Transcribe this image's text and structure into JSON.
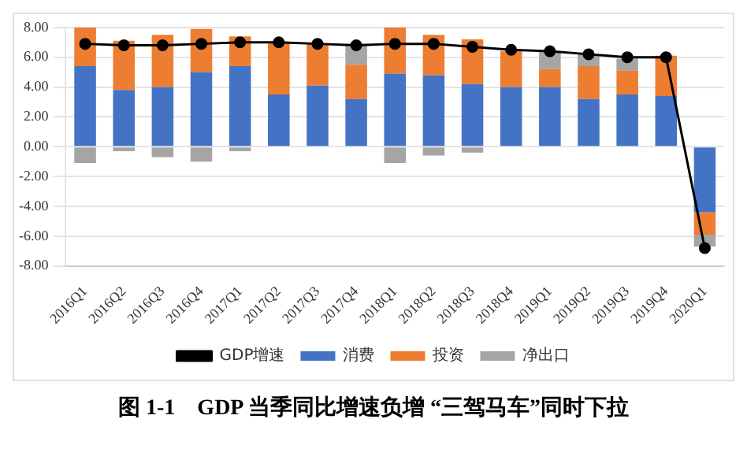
{
  "chart_data": {
    "type": "bar",
    "title": "图 1-1　GDP 当季同比增速负增 “三驾马车”同时下拉",
    "categories": [
      "2016Q1",
      "2016Q2",
      "2016Q3",
      "2016Q4",
      "2017Q1",
      "2017Q2",
      "2017Q3",
      "2017Q4",
      "2018Q1",
      "2018Q2",
      "2018Q3",
      "2018Q4",
      "2019Q1",
      "2019Q2",
      "2019Q3",
      "2019Q4",
      "2020Q1"
    ],
    "stacked": true,
    "series": [
      {
        "name": "消费",
        "color": "#4472c4",
        "values": [
          5.4,
          3.8,
          4.0,
          5.0,
          5.4,
          3.5,
          4.1,
          3.2,
          4.9,
          4.8,
          4.2,
          4.0,
          4.0,
          3.2,
          3.5,
          3.4,
          -4.4
        ]
      },
      {
        "name": "投资",
        "color": "#ed7d31",
        "values": [
          2.6,
          3.3,
          3.5,
          2.9,
          2.0,
          3.5,
          2.8,
          2.3,
          3.1,
          2.7,
          3.0,
          2.4,
          1.2,
          2.2,
          1.6,
          2.7,
          -1.5
        ]
      },
      {
        "name": "净出口",
        "color": "#a5a5a5",
        "values": [
          -1.1,
          -0.3,
          -0.7,
          -1.0,
          -0.3,
          null,
          null,
          1.4,
          -1.1,
          -0.6,
          -0.4,
          null,
          1.2,
          0.8,
          0.8,
          null,
          -0.8
        ]
      },
      {
        "name": "GDP增速",
        "type": "line",
        "color": "#000000",
        "marker": "circle",
        "values": [
          6.9,
          6.8,
          6.8,
          6.9,
          7.0,
          7.0,
          6.9,
          6.8,
          6.9,
          6.9,
          6.7,
          6.5,
          6.4,
          6.2,
          6.0,
          6.0,
          -6.8
        ]
      }
    ],
    "ylim": [
      -8,
      8
    ],
    "yticks": [
      {
        "value": -8,
        "label": "-8.00"
      },
      {
        "value": -6,
        "label": "-6.00"
      },
      {
        "value": -4,
        "label": "-4.00"
      },
      {
        "value": -2,
        "label": "-2.00"
      },
      {
        "value": 0,
        "label": "0.00"
      },
      {
        "value": 2,
        "label": "2.00"
      },
      {
        "value": 4,
        "label": "4.00"
      },
      {
        "value": 6,
        "label": "6.00"
      },
      {
        "value": 8,
        "label": "8.00"
      }
    ],
    "grid": "y",
    "legend": "bottom"
  }
}
